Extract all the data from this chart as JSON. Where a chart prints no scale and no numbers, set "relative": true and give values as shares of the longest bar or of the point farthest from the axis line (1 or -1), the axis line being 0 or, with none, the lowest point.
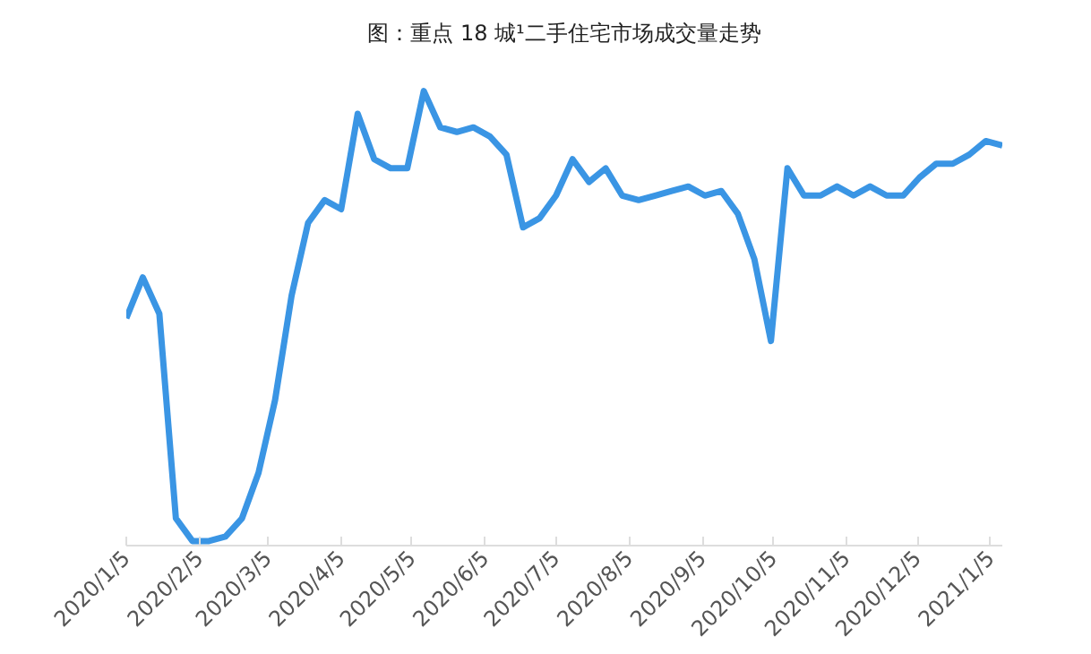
{
  "chart_data": {
    "type": "line",
    "title": "图：重点 18 城¹二手住宅市场成交量走势",
    "relative": true,
    "x": [
      "2020-01-05",
      "2020-01-12",
      "2020-01-19",
      "2020-01-26",
      "2020-02-02",
      "2020-02-09",
      "2020-02-16",
      "2020-02-23",
      "2020-03-01",
      "2020-03-08",
      "2020-03-15",
      "2020-03-22",
      "2020-03-29",
      "2020-04-05",
      "2020-04-12",
      "2020-04-19",
      "2020-04-26",
      "2020-05-03",
      "2020-05-10",
      "2020-05-17",
      "2020-05-24",
      "2020-05-31",
      "2020-06-07",
      "2020-06-14",
      "2020-06-21",
      "2020-06-28",
      "2020-07-05",
      "2020-07-12",
      "2020-07-19",
      "2020-07-26",
      "2020-08-02",
      "2020-08-09",
      "2020-08-16",
      "2020-08-23",
      "2020-08-30",
      "2020-09-06",
      "2020-09-13",
      "2020-09-20",
      "2020-09-27",
      "2020-10-04",
      "2020-10-11",
      "2020-10-18",
      "2020-10-25",
      "2020-11-01",
      "2020-11-08",
      "2020-11-15",
      "2020-11-22",
      "2020-11-29",
      "2020-12-06",
      "2020-12-13",
      "2020-12-20",
      "2020-12-27",
      "2021-01-03",
      "2021-01-10"
    ],
    "series": [
      {
        "color": "#3a95e4",
        "values": [
          0.5,
          0.59,
          0.51,
          0.06,
          0.01,
          0.01,
          0.02,
          0.06,
          0.16,
          0.32,
          0.55,
          0.71,
          0.76,
          0.74,
          0.95,
          0.85,
          0.83,
          0.83,
          1,
          0.92,
          0.91,
          0.92,
          0.9,
          0.86,
          0.7,
          0.72,
          0.77,
          0.85,
          0.8,
          0.83,
          0.77,
          0.76,
          0.77,
          0.78,
          0.79,
          0.77,
          0.78,
          0.73,
          0.63,
          0.45,
          0.83,
          0.77,
          0.77,
          0.79,
          0.77,
          0.79,
          0.77,
          0.77,
          0.81,
          0.84,
          0.84,
          0.86,
          0.89,
          0.88
        ]
      }
    ],
    "xlim": [
      "2020-01-05",
      "2021-01-10"
    ],
    "xticks": [
      {
        "value": "2020-01-05",
        "label": "2020/1/5"
      },
      {
        "value": "2020-02-05",
        "label": "2020/2/5"
      },
      {
        "value": "2020-03-05",
        "label": "2020/3/5"
      },
      {
        "value": "2020-04-05",
        "label": "2020/4/5"
      },
      {
        "value": "2020-05-05",
        "label": "2020/5/5"
      },
      {
        "value": "2020-06-05",
        "label": "2020/6/5"
      },
      {
        "value": "2020-07-05",
        "label": "2020/7/5"
      },
      {
        "value": "2020-08-05",
        "label": "2020/8/5"
      },
      {
        "value": "2020-09-05",
        "label": "2020/9/5"
      },
      {
        "value": "2020-10-05",
        "label": "2020/10/5"
      },
      {
        "value": "2020-11-05",
        "label": "2020/11/5"
      },
      {
        "value": "2020-12-05",
        "label": "2020/12/5"
      },
      {
        "value": "2021-01-05",
        "label": "2021/1/5"
      }
    ],
    "grid": false,
    "marker": "none",
    "line_style": "solid",
    "tick_labels": "x"
  }
}
